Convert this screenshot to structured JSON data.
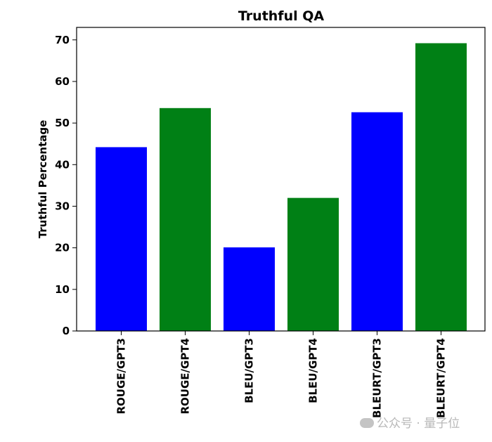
{
  "chart_data": {
    "type": "bar",
    "title": "Truthful QA",
    "xlabel": "",
    "ylabel": "Truthful Percentage",
    "categories": [
      "ROUGE/GPT3",
      "ROUGE/GPT4",
      "BLEU/GPT3",
      "BLEU/GPT4",
      "BLEURT/GPT3",
      "BLEURT/GPT4"
    ],
    "values": [
      44.2,
      53.6,
      20.1,
      32.0,
      52.6,
      69.2
    ],
    "bar_colors": [
      "#0000ff",
      "#008015",
      "#0000ff",
      "#008015",
      "#0000ff",
      "#008015"
    ],
    "ylim": [
      0,
      73
    ],
    "yticks": [
      0,
      10,
      20,
      30,
      40,
      50,
      60,
      70
    ],
    "grid": false,
    "legend": "none"
  },
  "watermark": {
    "text": "公众号 · 量子位"
  }
}
